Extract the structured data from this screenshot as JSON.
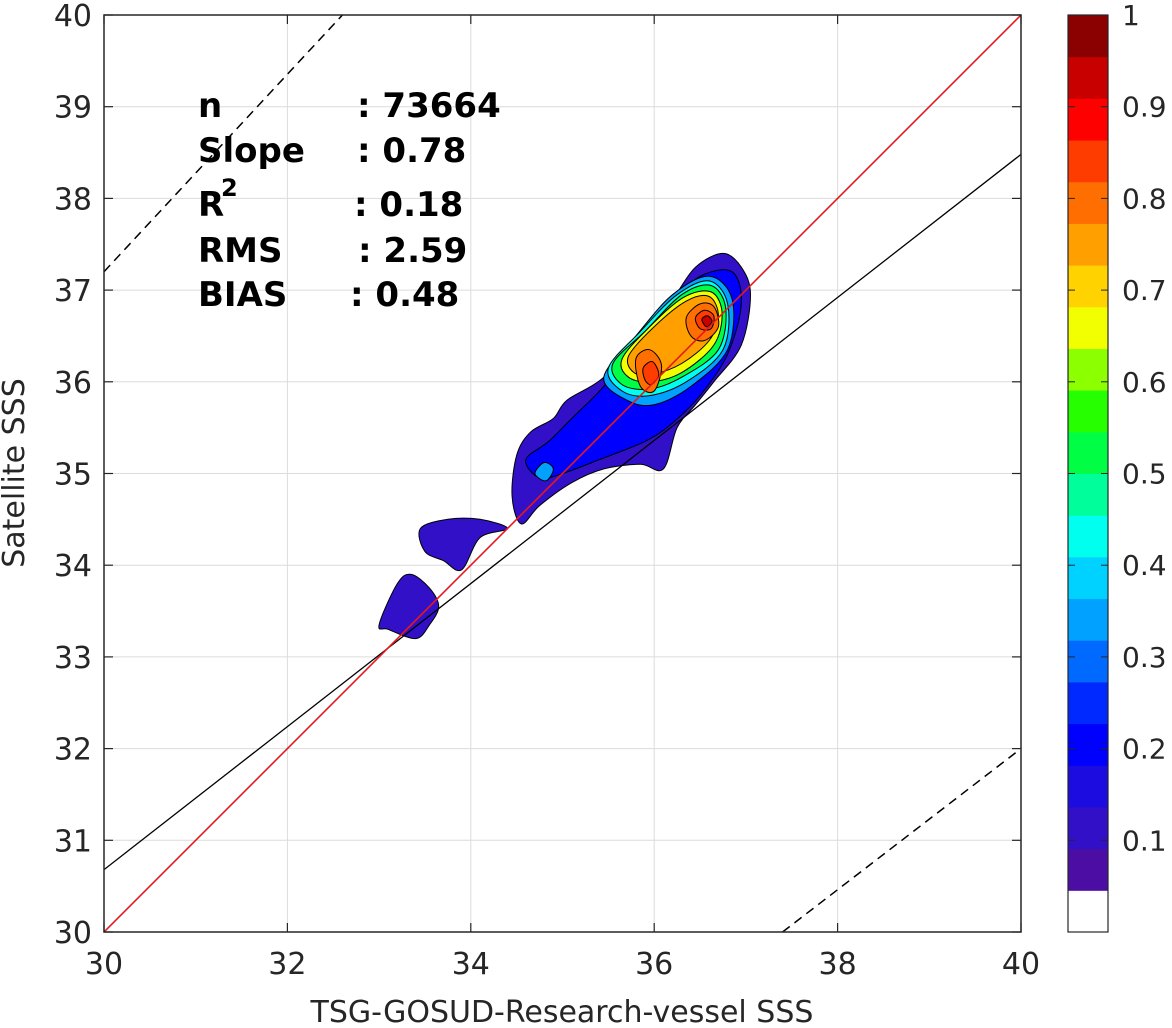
{
  "chart_data": {
    "type": "contour",
    "xlabel": "TSG-GOSUD-Research-vessel SSS",
    "ylabel": "Satellite SSS",
    "xlim": [
      30,
      40
    ],
    "ylim": [
      30,
      40
    ],
    "x_ticks": [
      "30",
      "32",
      "34",
      "36",
      "38",
      "40"
    ],
    "y_ticks": [
      "30",
      "31",
      "32",
      "33",
      "34",
      "35",
      "36",
      "37",
      "38",
      "39",
      "40"
    ],
    "grid": true,
    "stats": {
      "n_label": "n",
      "n_value": ": 73664",
      "slope_label": "Slope",
      "slope_value": ": 0.78",
      "r2_label": "R",
      "r2_sup": "2",
      "r2_value": ": 0.18",
      "rms_label": "RMS",
      "rms_value": ": 2.59",
      "bias_label": "BIAS",
      "bias_value": ": 0.48"
    },
    "lines": {
      "identity": {
        "color": "#e41a1c",
        "points": [
          [
            30,
            30
          ],
          [
            40,
            40
          ]
        ]
      },
      "regression": {
        "color": "#000000",
        "points": [
          [
            30,
            30.68
          ],
          [
            40,
            38.48
          ]
        ]
      },
      "upper_bound": {
        "style": "dashed",
        "points": [
          [
            30,
            37.2
          ],
          [
            32.6,
            40
          ]
        ]
      },
      "lower_bound": {
        "style": "dashed",
        "points": [
          [
            37.4,
            30
          ],
          [
            40,
            32
          ]
        ]
      }
    },
    "colorbar": {
      "ticks": [
        "0.1",
        "0.2",
        "0.3",
        "0.4",
        "0.5",
        "0.6",
        "0.7",
        "0.8",
        "0.9",
        "1"
      ],
      "tick_values": [
        0.1,
        0.2,
        0.3,
        0.4,
        0.5,
        0.6,
        0.7,
        0.8,
        0.9,
        1.0
      ],
      "range": [
        0,
        1
      ],
      "levels": [
        0,
        0.05,
        0.1,
        0.15,
        0.2,
        0.25,
        0.3,
        0.35,
        0.4,
        0.45,
        0.5,
        0.55,
        0.6,
        0.65,
        0.7,
        0.75,
        0.8,
        0.85,
        0.9,
        0.95,
        1.0
      ],
      "colors": [
        "#ffffff",
        "#4b0da3",
        "#3210c8",
        "#1d0ce0",
        "#0000ff",
        "#0029ff",
        "#0069ff",
        "#00a1ff",
        "#00d2ff",
        "#00ffef",
        "#00ff9a",
        "#00ff44",
        "#26ff00",
        "#8cff00",
        "#f2ff00",
        "#ffd200",
        "#ffa000",
        "#ff6e00",
        "#ff3c00",
        "#ff0000",
        "#c80000",
        "#8b0000"
      ]
    },
    "contours": [
      {
        "level": 0.05,
        "color": "#3210c8",
        "points": [
          [
            34.45,
            34.75
          ],
          [
            34.5,
            35.2
          ],
          [
            34.65,
            35.45
          ],
          [
            34.9,
            35.6
          ],
          [
            35.05,
            35.8
          ],
          [
            35.45,
            36.05
          ],
          [
            35.9,
            36.55
          ],
          [
            36.2,
            36.9
          ],
          [
            36.45,
            37.25
          ],
          [
            36.75,
            37.4
          ],
          [
            36.95,
            37.25
          ],
          [
            37.05,
            36.95
          ],
          [
            36.95,
            36.4
          ],
          [
            36.65,
            36.0
          ],
          [
            36.45,
            35.75
          ],
          [
            36.25,
            35.5
          ],
          [
            36.1,
            35.05
          ],
          [
            35.85,
            35.1
          ],
          [
            35.45,
            35.05
          ],
          [
            35.1,
            34.9
          ],
          [
            34.75,
            34.65
          ],
          [
            34.55,
            34.45
          ]
        ]
      },
      {
        "level": 0.05,
        "color": "#3210c8",
        "points": [
          [
            33.45,
            34.4
          ],
          [
            33.75,
            34.5
          ],
          [
            34.1,
            34.5
          ],
          [
            34.4,
            34.4
          ],
          [
            34.1,
            34.3
          ],
          [
            33.9,
            33.95
          ],
          [
            33.7,
            34.05
          ],
          [
            33.5,
            34.15
          ]
        ]
      },
      {
        "level": 0.05,
        "color": "#3210c8",
        "points": [
          [
            33.2,
            33.8
          ],
          [
            33.35,
            33.9
          ],
          [
            33.55,
            33.75
          ],
          [
            33.65,
            33.55
          ],
          [
            33.55,
            33.35
          ],
          [
            33.4,
            33.2
          ],
          [
            33.1,
            33.3
          ],
          [
            33.0,
            33.35
          ]
        ]
      },
      {
        "level": 0.12,
        "color": "#0000ff",
        "points": [
          [
            34.6,
            35.15
          ],
          [
            34.85,
            35.35
          ],
          [
            35.1,
            35.6
          ],
          [
            35.45,
            35.95
          ],
          [
            35.85,
            36.45
          ],
          [
            36.2,
            36.85
          ],
          [
            36.5,
            37.15
          ],
          [
            36.85,
            37.2
          ],
          [
            36.95,
            36.85
          ],
          [
            36.8,
            36.3
          ],
          [
            36.5,
            35.85
          ],
          [
            36.2,
            35.55
          ],
          [
            35.9,
            35.35
          ],
          [
            35.4,
            35.15
          ],
          [
            35.0,
            35.0
          ],
          [
            34.75,
            34.95
          ]
        ]
      },
      {
        "level": 0.25,
        "color": "#00a1ff",
        "points": [
          [
            35.45,
            36.05
          ],
          [
            35.8,
            36.5
          ],
          [
            36.2,
            36.95
          ],
          [
            36.6,
            37.15
          ],
          [
            36.85,
            36.9
          ],
          [
            36.8,
            36.35
          ],
          [
            36.4,
            35.95
          ],
          [
            36.0,
            35.75
          ],
          [
            35.7,
            35.8
          ]
        ]
      },
      {
        "level": 0.25,
        "color": "#00a1ff",
        "points": [
          [
            34.7,
            35.0
          ],
          [
            34.8,
            35.12
          ],
          [
            34.9,
            35.05
          ],
          [
            34.82,
            34.92
          ]
        ]
      },
      {
        "level": 0.35,
        "color": "#00ffef",
        "points": [
          [
            35.5,
            36.15
          ],
          [
            35.85,
            36.55
          ],
          [
            36.25,
            36.95
          ],
          [
            36.6,
            37.1
          ],
          [
            36.8,
            36.85
          ],
          [
            36.75,
            36.35
          ],
          [
            36.35,
            36.0
          ],
          [
            35.95,
            35.85
          ],
          [
            35.65,
            35.9
          ]
        ]
      },
      {
        "level": 0.45,
        "color": "#00ff44",
        "points": [
          [
            35.55,
            36.2
          ],
          [
            35.9,
            36.55
          ],
          [
            36.3,
            36.95
          ],
          [
            36.62,
            37.05
          ],
          [
            36.78,
            36.8
          ],
          [
            36.7,
            36.35
          ],
          [
            36.3,
            36.05
          ],
          [
            35.95,
            35.92
          ],
          [
            35.65,
            35.97
          ]
        ]
      },
      {
        "level": 0.55,
        "color": "#f2ff00",
        "points": [
          [
            35.65,
            36.25
          ],
          [
            35.95,
            36.6
          ],
          [
            36.32,
            36.92
          ],
          [
            36.62,
            36.98
          ],
          [
            36.74,
            36.75
          ],
          [
            36.65,
            36.4
          ],
          [
            36.3,
            36.1
          ],
          [
            35.97,
            36.0
          ],
          [
            35.72,
            36.05
          ]
        ]
      },
      {
        "level": 0.65,
        "color": "#ffa000",
        "points": [
          [
            35.72,
            36.28
          ],
          [
            36.0,
            36.6
          ],
          [
            36.35,
            36.88
          ],
          [
            36.6,
            36.93
          ],
          [
            36.7,
            36.72
          ],
          [
            36.6,
            36.45
          ],
          [
            36.3,
            36.2
          ],
          [
            35.98,
            36.08
          ],
          [
            35.78,
            36.1
          ]
        ]
      },
      {
        "level": 0.75,
        "color": "#ff6e00",
        "points": [
          [
            35.8,
            36.25
          ],
          [
            35.95,
            36.35
          ],
          [
            36.08,
            36.18
          ],
          [
            36.0,
            35.9
          ],
          [
            35.85,
            35.95
          ]
        ]
      },
      {
        "level": 0.75,
        "color": "#ff6e00",
        "points": [
          [
            36.35,
            36.7
          ],
          [
            36.5,
            36.85
          ],
          [
            36.65,
            36.82
          ],
          [
            36.7,
            36.6
          ],
          [
            36.55,
            36.45
          ],
          [
            36.4,
            36.5
          ]
        ]
      },
      {
        "level": 0.85,
        "color": "#ff3c00",
        "points": [
          [
            35.88,
            36.15
          ],
          [
            35.98,
            36.22
          ],
          [
            36.05,
            36.08
          ],
          [
            35.97,
            35.97
          ],
          [
            35.9,
            36.02
          ]
        ]
      },
      {
        "level": 0.85,
        "color": "#ff3c00",
        "points": [
          [
            36.45,
            36.7
          ],
          [
            36.55,
            36.78
          ],
          [
            36.65,
            36.72
          ],
          [
            36.62,
            36.58
          ],
          [
            36.5,
            36.58
          ]
        ]
      },
      {
        "level": 0.95,
        "color": "#c80000",
        "points": [
          [
            36.52,
            36.68
          ],
          [
            36.58,
            36.72
          ],
          [
            36.63,
            36.66
          ],
          [
            36.57,
            36.6
          ]
        ]
      }
    ]
  }
}
